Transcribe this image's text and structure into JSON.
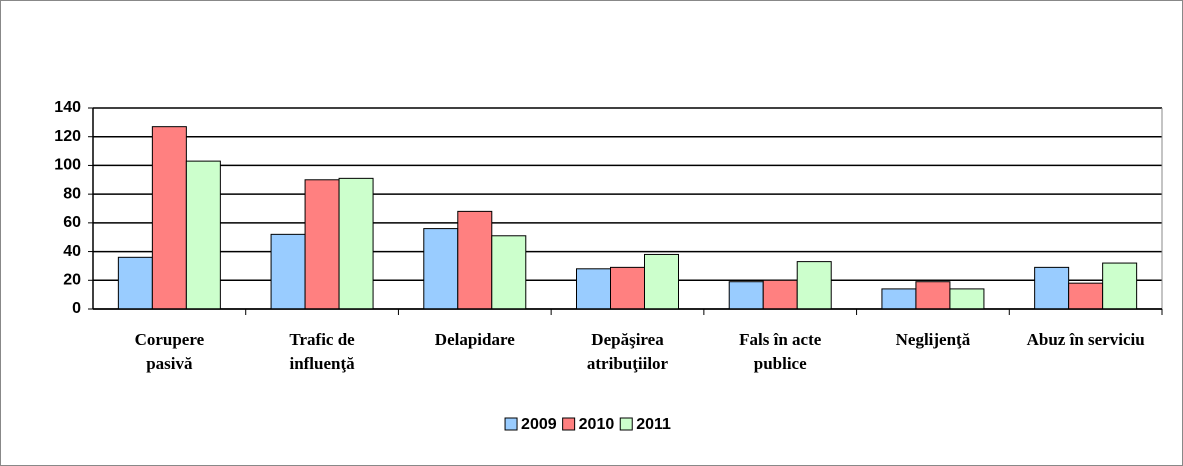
{
  "chart_data": {
    "type": "bar",
    "categories": [
      "Corupere pasivă",
      "Trafic de influenţă",
      "Delapidare",
      "Depăşirea atribuţiilor",
      "Fals în acte publice",
      "Neglijenţă",
      "Abuz în serviciu"
    ],
    "series": [
      {
        "name": "2009",
        "color": "#99ccff",
        "values": [
          36,
          52,
          56,
          28,
          19,
          14,
          29
        ]
      },
      {
        "name": "2010",
        "color": "#ff8080",
        "values": [
          127,
          90,
          68,
          29,
          20,
          19,
          18
        ]
      },
      {
        "name": "2011",
        "color": "#ccffcc",
        "values": [
          103,
          91,
          51,
          38,
          33,
          14,
          32
        ]
      }
    ],
    "ylim": [
      0,
      140
    ],
    "yticks": [
      0,
      20,
      40,
      60,
      80,
      100,
      120,
      140
    ],
    "grid": true,
    "legend": "bottom"
  }
}
